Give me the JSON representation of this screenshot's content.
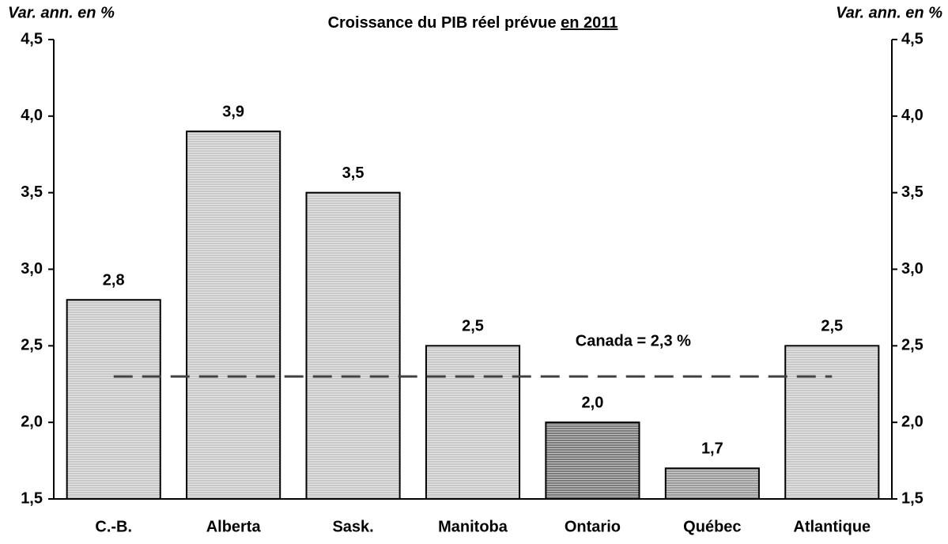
{
  "chart_data": {
    "type": "bar",
    "title": "Croissance du PIB réel prévue",
    "title_emphasis": "en 2011",
    "ylabel": "Var. ann. en %",
    "y2label": "Var. ann. en %",
    "categories": [
      "C.-B.",
      "Alberta",
      "Sask.",
      "Manitoba",
      "Ontario",
      "Québec",
      "Atlantique"
    ],
    "values": [
      2.8,
      3.9,
      3.5,
      2.5,
      2.0,
      1.7,
      2.5
    ],
    "value_labels": [
      "2,8",
      "3,9",
      "3,5",
      "2,5",
      "2,0",
      "1,7",
      "2,5"
    ],
    "colors": [
      "#c8c8c8",
      "#c8c8c8",
      "#c8c8c8",
      "#c8c8c8",
      "#7a7a7a",
      "#9a9a9a",
      "#c8c8c8"
    ],
    "ylim": [
      1.5,
      4.5
    ],
    "yticks": [
      {
        "value": 1.5,
        "label": "1,5"
      },
      {
        "value": 2.0,
        "label": "2,0"
      },
      {
        "value": 2.5,
        "label": "2,5"
      },
      {
        "value": 3.0,
        "label": "3,0"
      },
      {
        "value": 3.5,
        "label": "3,5"
      },
      {
        "value": 4.0,
        "label": "4,0"
      },
      {
        "value": 4.5,
        "label": "4,5"
      }
    ],
    "y2lim": [
      1.5,
      4.5
    ],
    "y2ticks": [
      {
        "value": 1.5,
        "label": "1,5"
      },
      {
        "value": 2.0,
        "label": "2,0"
      },
      {
        "value": 2.5,
        "label": "2,5"
      },
      {
        "value": 3.0,
        "label": "3,0"
      },
      {
        "value": 3.5,
        "label": "3,5"
      },
      {
        "value": 4.0,
        "label": "4,0"
      },
      {
        "value": 4.5,
        "label": "4,5"
      }
    ],
    "reference_line": {
      "value": 2.3,
      "label": "Canada = 2,3 %",
      "color": "#404040"
    },
    "grid": false
  }
}
